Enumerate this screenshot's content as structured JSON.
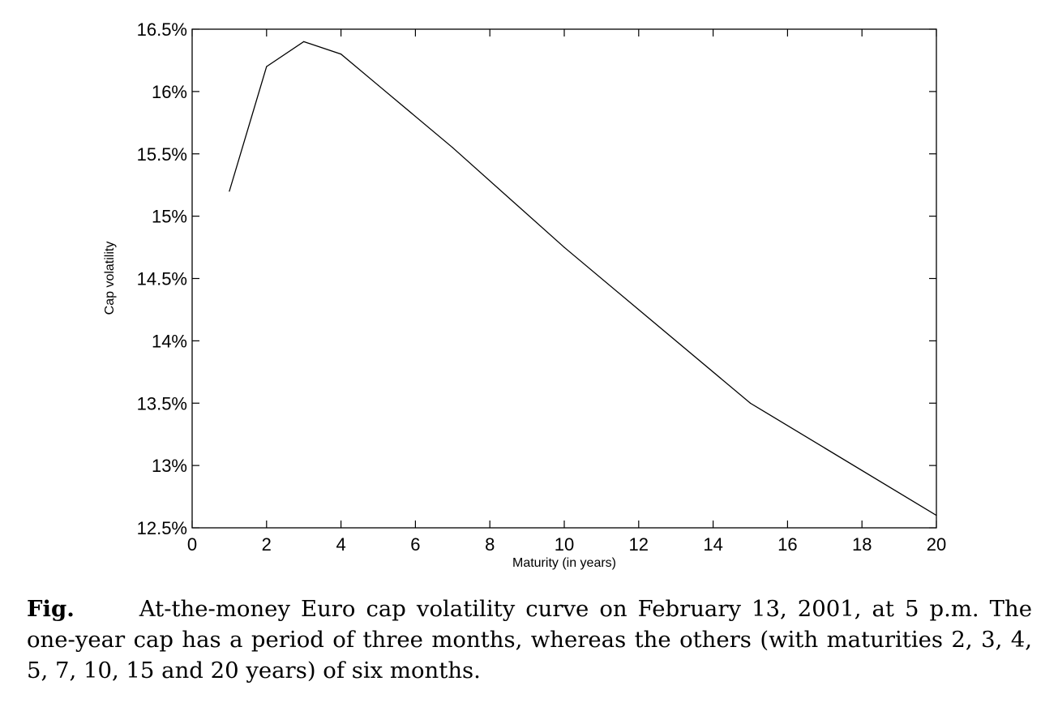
{
  "chart_data": {
    "type": "line",
    "title": "",
    "xlabel": "Maturity (in years)",
    "ylabel": "Cap volatility",
    "xlim": [
      0,
      20
    ],
    "ylim": [
      12.5,
      16.5
    ],
    "x_ticks": [
      0,
      2,
      4,
      6,
      8,
      10,
      12,
      14,
      16,
      18,
      20
    ],
    "y_ticks": [
      12.5,
      13,
      13.5,
      14,
      14.5,
      15,
      15.5,
      16,
      16.5
    ],
    "x_tick_labels": [
      "0",
      "2",
      "4",
      "6",
      "8",
      "10",
      "12",
      "14",
      "16",
      "18",
      "20"
    ],
    "y_tick_labels": [
      "12.5%",
      "13%",
      "13.5%",
      "14%",
      "14.5%",
      "15%",
      "15.5%",
      "16%",
      "16.5%"
    ],
    "grid": false,
    "line_color": "#000000",
    "series": [
      {
        "x": [
          1,
          2,
          3,
          4,
          5,
          7,
          10,
          15,
          20
        ],
        "y": [
          15.2,
          16.2,
          16.4,
          16.3,
          16.05,
          15.55,
          14.75,
          13.5,
          12.6
        ]
      }
    ]
  },
  "caption": {
    "label": "Fig.",
    "text": "At-the-money Euro cap volatility curve on February 13, 2001, at 5 p.m. The one-year cap has a period of three months, whereas the others (with maturities 2, 3, 4, 5, 7, 10, 15 and 20 years) of six months."
  }
}
